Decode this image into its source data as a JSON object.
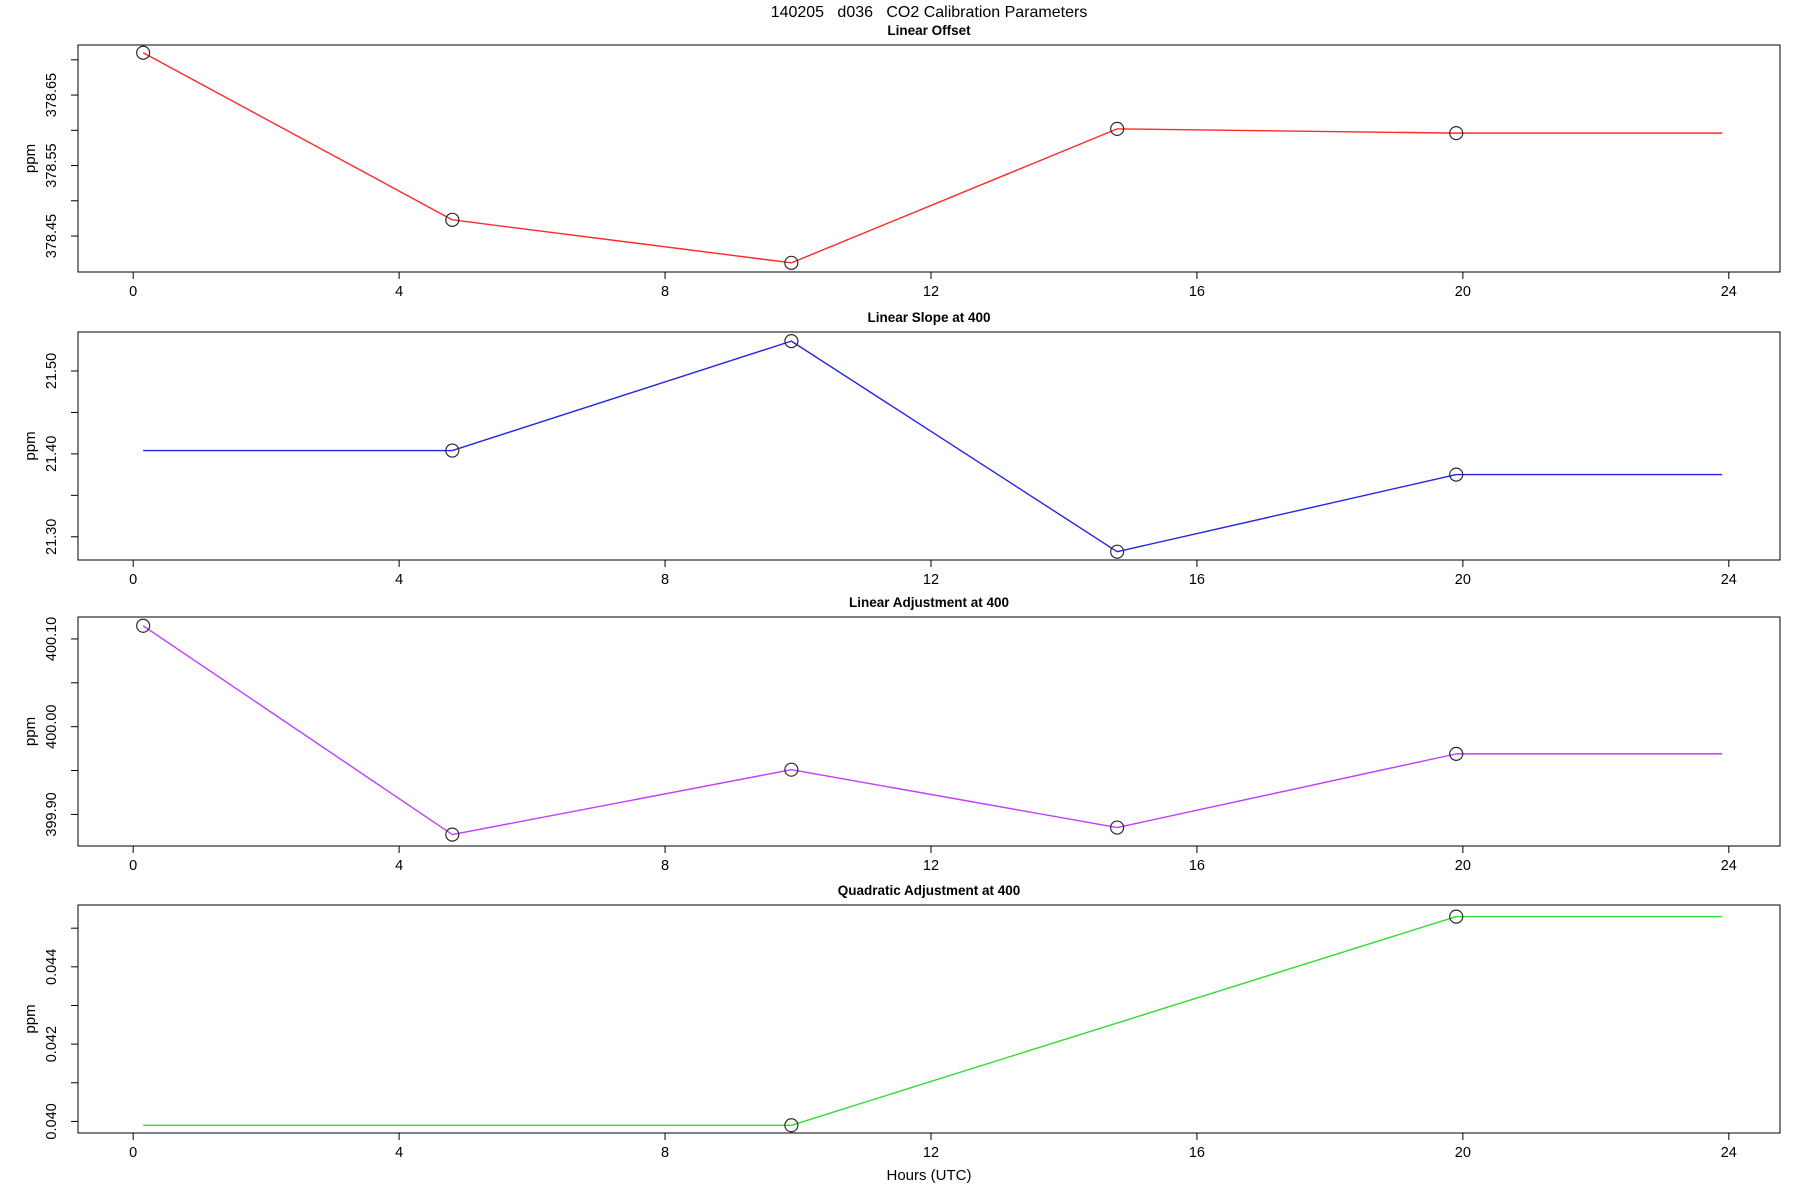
{
  "figure": {
    "title": "140205   d036   CO2 Calibration Parameters",
    "xlabel": "Hours (UTC)",
    "x_axis": {
      "xlim": [
        -0.83,
        24.77
      ],
      "ticks": [
        {
          "v": 0,
          "label": "0"
        },
        {
          "v": 4,
          "label": "4"
        },
        {
          "v": 8,
          "label": "8"
        },
        {
          "v": 12,
          "label": "12"
        },
        {
          "v": 16,
          "label": "16"
        },
        {
          "v": 20,
          "label": "20"
        },
        {
          "v": 24,
          "label": "24"
        }
      ]
    },
    "frame_color": "#000000",
    "marker_color": "#2b2b2b"
  },
  "chart_data": [
    {
      "type": "line",
      "title": "Linear Offset",
      "ylabel": "ppm",
      "color": "#ff2a2a",
      "ylim": [
        378.399,
        378.721
      ],
      "yticks": [
        {
          "v": 378.45,
          "label": "378.45"
        },
        {
          "v": 378.5,
          "label": ""
        },
        {
          "v": 378.55,
          "label": "378.55"
        },
        {
          "v": 378.6,
          "label": ""
        },
        {
          "v": 378.65,
          "label": "378.65"
        },
        {
          "v": 378.7,
          "label": ""
        }
      ],
      "series": {
        "x": [
          0.15,
          4.8,
          9.9,
          14.8,
          19.9,
          23.9
        ],
        "y": [
          378.71,
          378.473,
          378.412,
          378.602,
          378.596,
          378.596
        ],
        "marker": [
          true,
          true,
          true,
          true,
          true,
          false
        ]
      }
    },
    {
      "type": "line",
      "title": "Linear Slope at 400",
      "ylabel": "ppm",
      "color": "#2424e8",
      "ylim": [
        21.272,
        21.547
      ],
      "yticks": [
        {
          "v": 21.3,
          "label": "21.30"
        },
        {
          "v": 21.35,
          "label": ""
        },
        {
          "v": 21.4,
          "label": "21.40"
        },
        {
          "v": 21.45,
          "label": ""
        },
        {
          "v": 21.5,
          "label": "21.50"
        }
      ],
      "series": {
        "x": [
          0.15,
          4.8,
          9.9,
          14.8,
          19.9,
          23.9
        ],
        "y": [
          21.404,
          21.404,
          21.536,
          21.282,
          21.375,
          21.375
        ],
        "marker": [
          false,
          true,
          true,
          true,
          true,
          false
        ]
      }
    },
    {
      "type": "line",
      "title": "Linear Adjustment at 400",
      "ylabel": "ppm",
      "color": "#bf3eff",
      "ylim": [
        399.864,
        400.125
      ],
      "yticks": [
        {
          "v": 399.9,
          "label": "399.90"
        },
        {
          "v": 399.95,
          "label": ""
        },
        {
          "v": 400.0,
          "label": "400.00"
        },
        {
          "v": 400.05,
          "label": ""
        },
        {
          "v": 400.1,
          "label": "400.10"
        }
      ],
      "series": {
        "x": [
          0.15,
          4.8,
          9.9,
          14.8,
          19.9,
          23.9
        ],
        "y": [
          400.115,
          399.877,
          399.951,
          399.885,
          399.969,
          399.969
        ],
        "marker": [
          true,
          true,
          true,
          true,
          true,
          false
        ]
      }
    },
    {
      "type": "line",
      "title": "Quadratic Adjustment at 400",
      "ylabel": "ppm",
      "color": "#30dd30",
      "ylim": [
        0.0397,
        0.0456
      ],
      "yticks": [
        {
          "v": 0.04,
          "label": "0.040"
        },
        {
          "v": 0.041,
          "label": ""
        },
        {
          "v": 0.042,
          "label": "0.042"
        },
        {
          "v": 0.043,
          "label": ""
        },
        {
          "v": 0.044,
          "label": "0.044"
        },
        {
          "v": 0.045,
          "label": ""
        }
      ],
      "series": {
        "x": [
          0.15,
          9.9,
          19.9,
          23.9
        ],
        "y": [
          0.0399,
          0.0399,
          0.0453,
          0.0453
        ],
        "marker": [
          false,
          true,
          true,
          false
        ]
      }
    }
  ]
}
